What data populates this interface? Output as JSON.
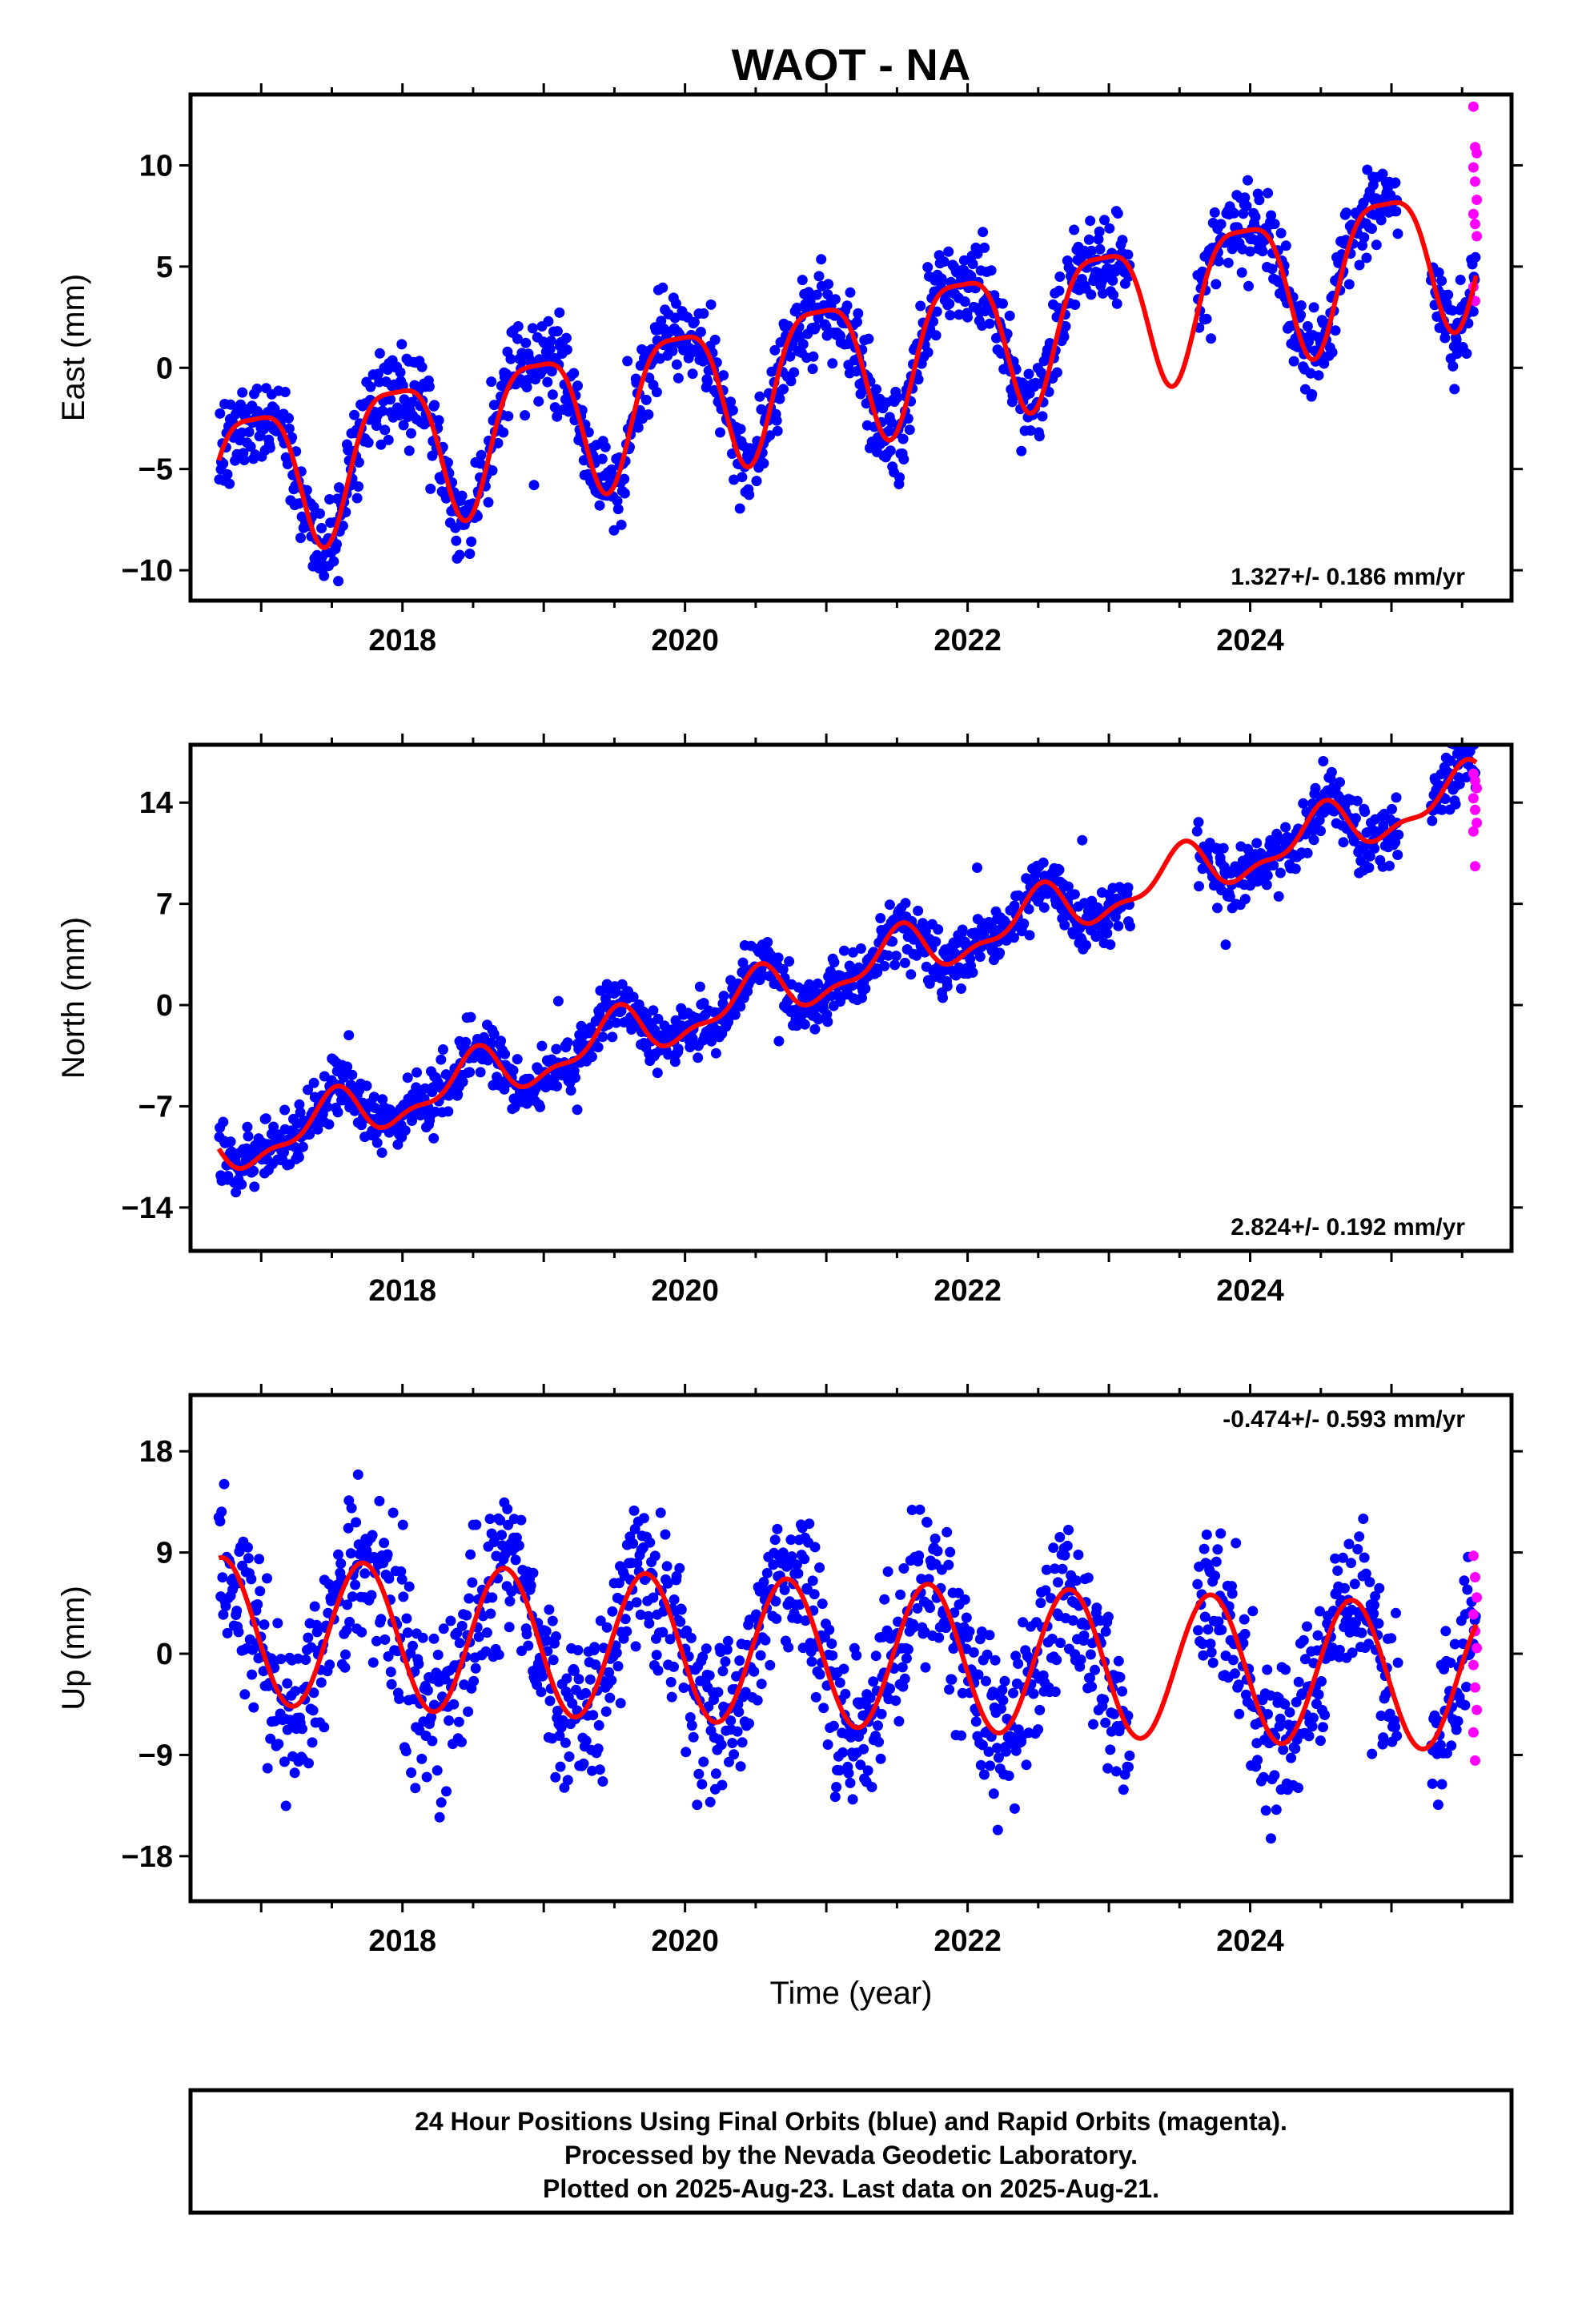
{
  "title": "WAOT - NA",
  "xlabel": "Time (year)",
  "footer": {
    "line1": "24 Hour Positions Using Final Orbits (blue) and Rapid Orbits (magenta).",
    "line2": "Processed by the Nevada Geodetic Laboratory.",
    "line3": "Plotted on 2025-Aug-23. Last data on 2025-Aug-21."
  },
  "colors": {
    "final": "#0000ff",
    "rapid": "#ff00ff",
    "model": "#ff0000",
    "frame": "#000000"
  },
  "chart_data": [
    {
      "type": "scatter",
      "ylabel": "East (mm)",
      "rate_label": "1.327+/- 0.186 mm/yr",
      "rate_position": "bottom-right",
      "xlim": [
        2016.5,
        2025.85
      ],
      "ylim": [
        -11.5,
        13.5
      ],
      "xticks": [
        2018,
        2020,
        2022,
        2024
      ],
      "xtick_labels": [
        "2018",
        "2020",
        "2022",
        "2024"
      ],
      "yticks": [
        10,
        5,
        0,
        -5,
        -10
      ],
      "ytick_labels": [
        "10",
        "5",
        "0",
        "−5",
        "−10"
      ],
      "model": {
        "offset": -1.1,
        "trend": 1.327,
        "annual_amp": 3.5,
        "annual_peak": 0.95,
        "semiannual_amp": 0.9,
        "semiannual_peak": 0.7,
        "start": 2016.7,
        "end": 2025.6
      },
      "final_scatter": 1.1,
      "rapid_y": [
        12.9,
        10.9,
        10.6,
        9.9,
        9.2,
        8.3,
        7.6,
        7.1,
        6.5,
        4.0,
        3.3
      ]
    },
    {
      "type": "scatter",
      "ylabel": "North (mm)",
      "rate_label": "2.824+/- 0.192 mm/yr",
      "rate_position": "bottom-right",
      "xlim": [
        2016.5,
        2025.85
      ],
      "ylim": [
        -17,
        18
      ],
      "xticks": [
        2018,
        2020,
        2022,
        2024
      ],
      "xtick_labels": [
        "2018",
        "2020",
        "2022",
        "2024"
      ],
      "yticks": [
        14,
        7,
        0,
        -7,
        -14
      ],
      "ytick_labels": [
        "14",
        "7",
        "0",
        "−7",
        "−14"
      ],
      "model": {
        "offset": -0.9,
        "trend": 2.824,
        "annual_amp": 1.6,
        "annual_peak": 0.5,
        "semiannual_amp": 0.7,
        "semiannual_peak": 0.55,
        "start": 2016.7,
        "end": 2025.6
      },
      "final_scatter": 1.0,
      "rapid_y": [
        16.0,
        15.5,
        15.0,
        14.3,
        13.5,
        12.6,
        12.0,
        9.6
      ]
    },
    {
      "type": "scatter",
      "ylabel": "Up (mm)",
      "rate_label": "-0.474+/- 0.593 mm/yr",
      "rate_position": "top-right",
      "xlim": [
        2016.5,
        2025.85
      ],
      "ylim": [
        -22,
        23
      ],
      "xticks": [
        2018,
        2020,
        2022,
        2024
      ],
      "xtick_labels": [
        "2018",
        "2020",
        "2022",
        "2024"
      ],
      "yticks": [
        18,
        9,
        0,
        -9,
        -18
      ],
      "ytick_labels": [
        "18",
        "9",
        "0",
        "−9",
        "−18"
      ],
      "model": {
        "offset": 0.5,
        "trend": -0.474,
        "annual_amp": 6.5,
        "annual_peak": 0.72,
        "semiannual_amp": 0.0,
        "semiannual_peak": 0.0,
        "start": 2016.7,
        "end": 2025.6
      },
      "final_scatter": 3.6,
      "rapid_y": [
        8.7,
        6.8,
        5.0,
        3.5,
        2.0,
        0.5,
        -1.0,
        -3.0,
        -5.0,
        -7.0,
        -9.5
      ]
    }
  ]
}
